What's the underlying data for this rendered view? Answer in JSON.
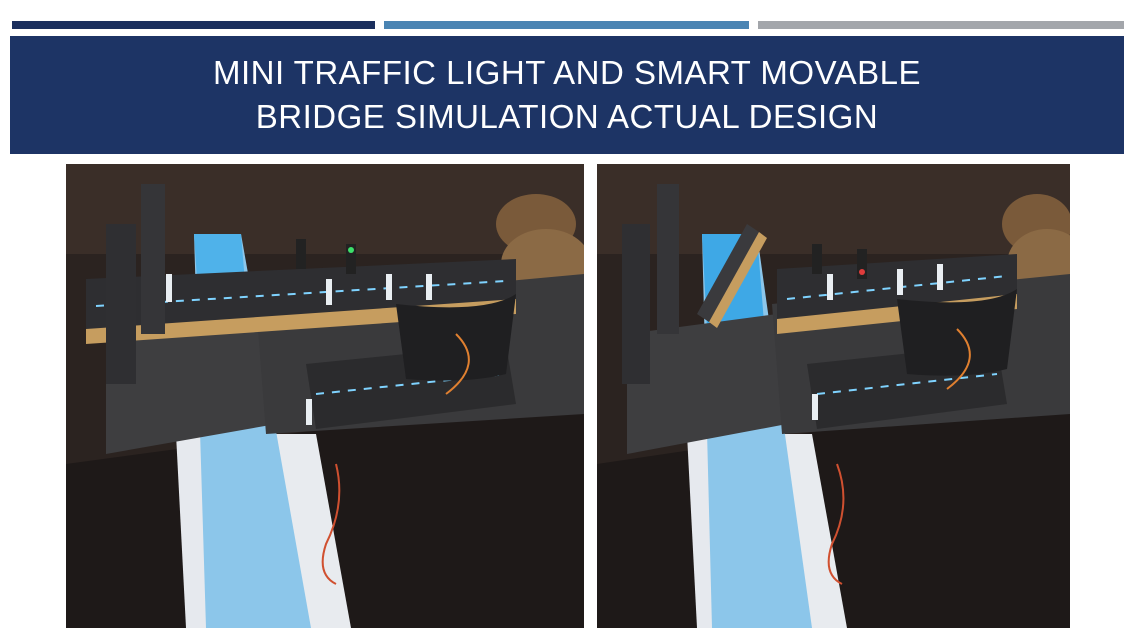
{
  "slide": {
    "title": "MINI TRAFFIC LIGHT AND SMART MOVABLE BRIDGE SIMULATION ACTUAL DESIGN",
    "accent_colors": [
      "#1b2f5e",
      "#4a84b3",
      "#a3a6ab"
    ],
    "title_band_color": "#1d3465"
  },
  "photos": [
    {
      "name": "bridge-model-lowered-photo",
      "bridge_state": "lowered"
    },
    {
      "name": "bridge-model-raised-photo",
      "bridge_state": "raised"
    }
  ]
}
